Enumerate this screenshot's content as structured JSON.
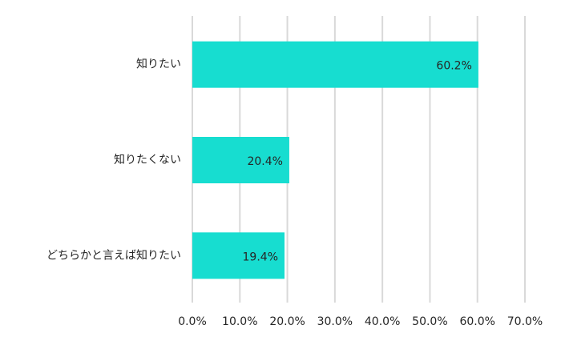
{
  "chart_data": {
    "type": "bar",
    "categories": [
      "知りたい",
      "知りたくない",
      "どちらかと言えば知りたい"
    ],
    "values": [
      60.2,
      20.4,
      19.4
    ],
    "value_labels": [
      "60.2%",
      "20.4%",
      "19.4%"
    ],
    "color": "#17ddd0",
    "xlim": [
      0,
      70
    ],
    "xticks": [
      {
        "value": 0,
        "label": "0.0%"
      },
      {
        "value": 10,
        "label": "10.0%"
      },
      {
        "value": 20,
        "label": "20.0%"
      },
      {
        "value": 30,
        "label": "30.0%"
      },
      {
        "value": 40,
        "label": "40.0%"
      },
      {
        "value": 50,
        "label": "50.0%"
      },
      {
        "value": 60,
        "label": "60.0%"
      },
      {
        "value": 70,
        "label": "70.0%"
      }
    ],
    "grid": true
  }
}
